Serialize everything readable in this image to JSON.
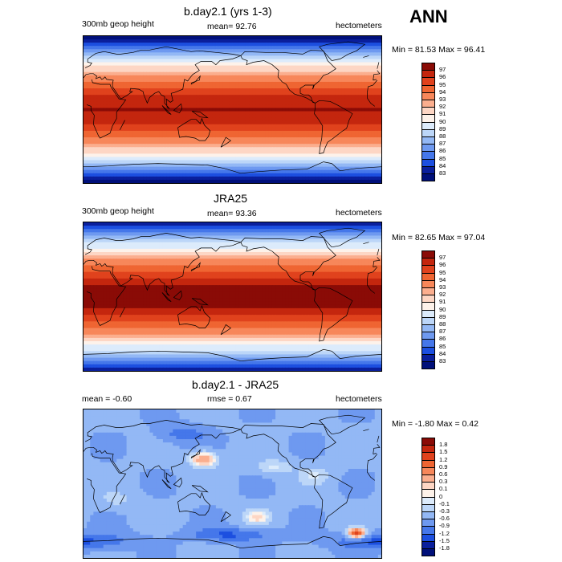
{
  "season": "ANN",
  "panels": [
    {
      "title": "b.day2.1 (yrs 1-3)",
      "left_label": "300mb geop height",
      "center_label": "mean=  92.76",
      "right_label": "hectometers",
      "minmax": "Min = 81.53 Max =  96.41",
      "field": "model",
      "levels": [
        "97",
        "96",
        "95",
        "94",
        "93",
        "92",
        "91",
        "90",
        "89",
        "88",
        "87",
        "86",
        "85",
        "84",
        "83"
      ],
      "colors": [
        "#8a0b06",
        "#c4260e",
        "#e0421d",
        "#ef6532",
        "#f7875a",
        "#fbae8e",
        "#fdd6c4",
        "#fdf2ea",
        "#dcebfb",
        "#bcd6f8",
        "#93b8f5",
        "#6e99f0",
        "#4577ea",
        "#1c4fe0",
        "#0a1f9c",
        "#00107a"
      ]
    },
    {
      "title": "JRA25",
      "left_label": "300mb geop height",
      "center_label": "mean=  93.36",
      "right_label": "hectometers",
      "minmax": "Min = 82.65 Max =  97.04",
      "field": "obs",
      "levels": [
        "97",
        "96",
        "95",
        "94",
        "93",
        "92",
        "91",
        "90",
        "89",
        "88",
        "87",
        "86",
        "85",
        "84",
        "83"
      ],
      "colors": [
        "#8a0b06",
        "#c4260e",
        "#e0421d",
        "#ef6532",
        "#f7875a",
        "#fbae8e",
        "#fdd6c4",
        "#fdf2ea",
        "#dcebfb",
        "#bcd6f8",
        "#93b8f5",
        "#6e99f0",
        "#4577ea",
        "#1c4fe0",
        "#0a1f9c",
        "#00107a"
      ]
    },
    {
      "title": "b.day2.1 - JRA25",
      "left_label": "mean =  -0.60",
      "center_label": "rmse =   0.67",
      "right_label": "hectometers",
      "minmax": "Min = -1.80 Max =  0.42",
      "field": "diff",
      "levels": [
        "1.8",
        "1.5",
        "1.2",
        "0.9",
        "0.6",
        "0.3",
        "0.1",
        "0",
        "-0.1",
        "-0.3",
        "-0.6",
        "-0.9",
        "-1.2",
        "-1.5",
        "-1.8"
      ],
      "colors": [
        "#8a0b06",
        "#c4260e",
        "#e0421d",
        "#ef6532",
        "#f7875a",
        "#fbae8e",
        "#fdd6c4",
        "#fdf2ea",
        "#dcebfb",
        "#bcd6f8",
        "#93b8f5",
        "#6e99f0",
        "#4577ea",
        "#1c4fe0",
        "#0a1f9c",
        "#00107a"
      ]
    }
  ]
}
